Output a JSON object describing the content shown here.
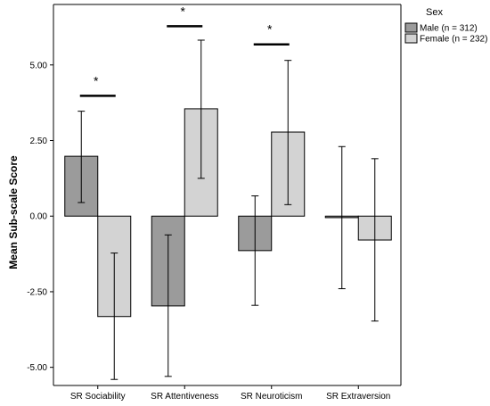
{
  "chart_data": {
    "type": "bar",
    "ylabel": "Mean Sub-scale Score",
    "ylim": [
      -5.6,
      7.0
    ],
    "yticks": [
      -5.0,
      -2.5,
      0.0,
      2.5,
      5.0
    ],
    "ytick_labels": [
      "-5.00",
      "-2.50",
      "0.00",
      "2.50",
      "5.00"
    ],
    "categories": [
      "SR Sociability",
      "SR Attentiveness",
      "SR Neuroticism",
      "SR Extraversion"
    ],
    "legend": {
      "title": "Sex",
      "position": "top-right"
    },
    "series": [
      {
        "name": "Male (n = 312)",
        "color": "#9b9b9b",
        "values": [
          1.98,
          -2.97,
          -1.14,
          -0.05
        ],
        "error_low": [
          0.45,
          -5.3,
          -2.95,
          -2.4
        ],
        "error_high": [
          3.47,
          -0.62,
          0.67,
          2.3
        ]
      },
      {
        "name": "Female (n = 232)",
        "color": "#d3d3d3",
        "values": [
          -3.32,
          3.55,
          2.78,
          -0.79
        ],
        "error_low": [
          -5.4,
          1.25,
          0.38,
          -3.47
        ],
        "error_high": [
          -1.22,
          5.82,
          5.15,
          1.9
        ]
      }
    ],
    "significance": [
      {
        "category": "SR Sociability",
        "label": "*",
        "y": 3.98
      },
      {
        "category": "SR Attentiveness",
        "label": "*",
        "y": 6.28
      },
      {
        "category": "SR Neuroticism",
        "label": "*",
        "y": 5.68
      }
    ],
    "grid": false
  }
}
